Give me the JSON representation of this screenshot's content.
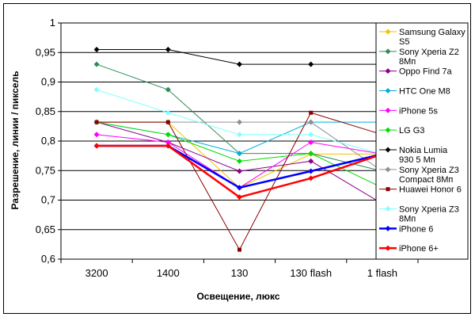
{
  "chart_data": {
    "type": "line",
    "title": "",
    "xlabel": "Освещение, люкс",
    "ylabel": "Разрешение, линии / пиксель",
    "categories": [
      "3200",
      "1400",
      "130",
      "130 flash",
      "1 flash"
    ],
    "ylim": [
      0.6,
      1.0
    ],
    "ytick_step": 0.05,
    "yticks": [
      "0,6",
      "0,65",
      "0,7",
      "0,75",
      "0,8",
      "0,85",
      "0,9",
      "0,95",
      "1"
    ],
    "grid": "horizontal",
    "legend": "right",
    "series": [
      {
        "name": "Samsung Galaxy S5",
        "color": "#f2c200",
        "marker": "diamond",
        "width": 1,
        "values": [
          0.832,
          0.832,
          0.721,
          0.778,
          0.778
        ]
      },
      {
        "name": "Sony Xperia Z2 8Мп",
        "color": "#2e8b57",
        "marker": "diamond",
        "width": 1,
        "values": [
          0.93,
          0.887,
          0.779,
          0.779,
          0.749
        ]
      },
      {
        "name": "Oppo Find 7a",
        "color": "#8b008b",
        "marker": "diamond",
        "width": 1,
        "values": [
          0.832,
          0.798,
          0.749,
          0.766,
          0.694
        ]
      },
      {
        "name": "HTC One M8",
        "color": "#00b0d8",
        "marker": "diamond",
        "width": 1,
        "values": [
          0.832,
          0.811,
          0.779,
          0.832,
          0.832
        ]
      },
      {
        "name": "iPhone 5s",
        "color": "#ff00ff",
        "marker": "diamond",
        "width": 1,
        "values": [
          0.811,
          0.798,
          0.721,
          0.798,
          0.778
        ]
      },
      {
        "name": "LG G3",
        "color": "#00dd00",
        "marker": "diamond",
        "width": 1,
        "values": [
          0.832,
          0.811,
          0.766,
          0.779,
          0.721
        ]
      },
      {
        "name": "Nokia Lumia 930 5 Мп",
        "color": "#000000",
        "marker": "diamond",
        "width": 1,
        "values": [
          0.955,
          0.955,
          0.93,
          0.93,
          0.93
        ]
      },
      {
        "name": "Sony Xperia Z3 Compact 8Мп",
        "color": "#909090",
        "marker": "diamond",
        "width": 1,
        "values": [
          0.832,
          0.832,
          0.832,
          0.832,
          0.749
        ]
      },
      {
        "name": "Huawei Honor 6",
        "color": "#8b0000",
        "marker": "square",
        "width": 1,
        "values": [
          0.832,
          0.832,
          0.616,
          0.848,
          0.811
        ]
      },
      {
        "name": "Sony Xperia Z3 8Мп",
        "color": "#80ffff",
        "marker": "diamond",
        "width": 1,
        "values": [
          0.887,
          0.848,
          0.811,
          0.811,
          0.778
        ]
      },
      {
        "name": "iPhone 6",
        "color": "#0000ff",
        "marker": "diamond",
        "width": 2.5,
        "values": [
          0.792,
          0.792,
          0.721,
          0.749,
          0.778
        ]
      },
      {
        "name": "iPhone 6+",
        "color": "#ff0000",
        "marker": "diamond",
        "width": 2.5,
        "values": [
          0.792,
          0.792,
          0.705,
          0.737,
          0.778
        ]
      }
    ]
  }
}
